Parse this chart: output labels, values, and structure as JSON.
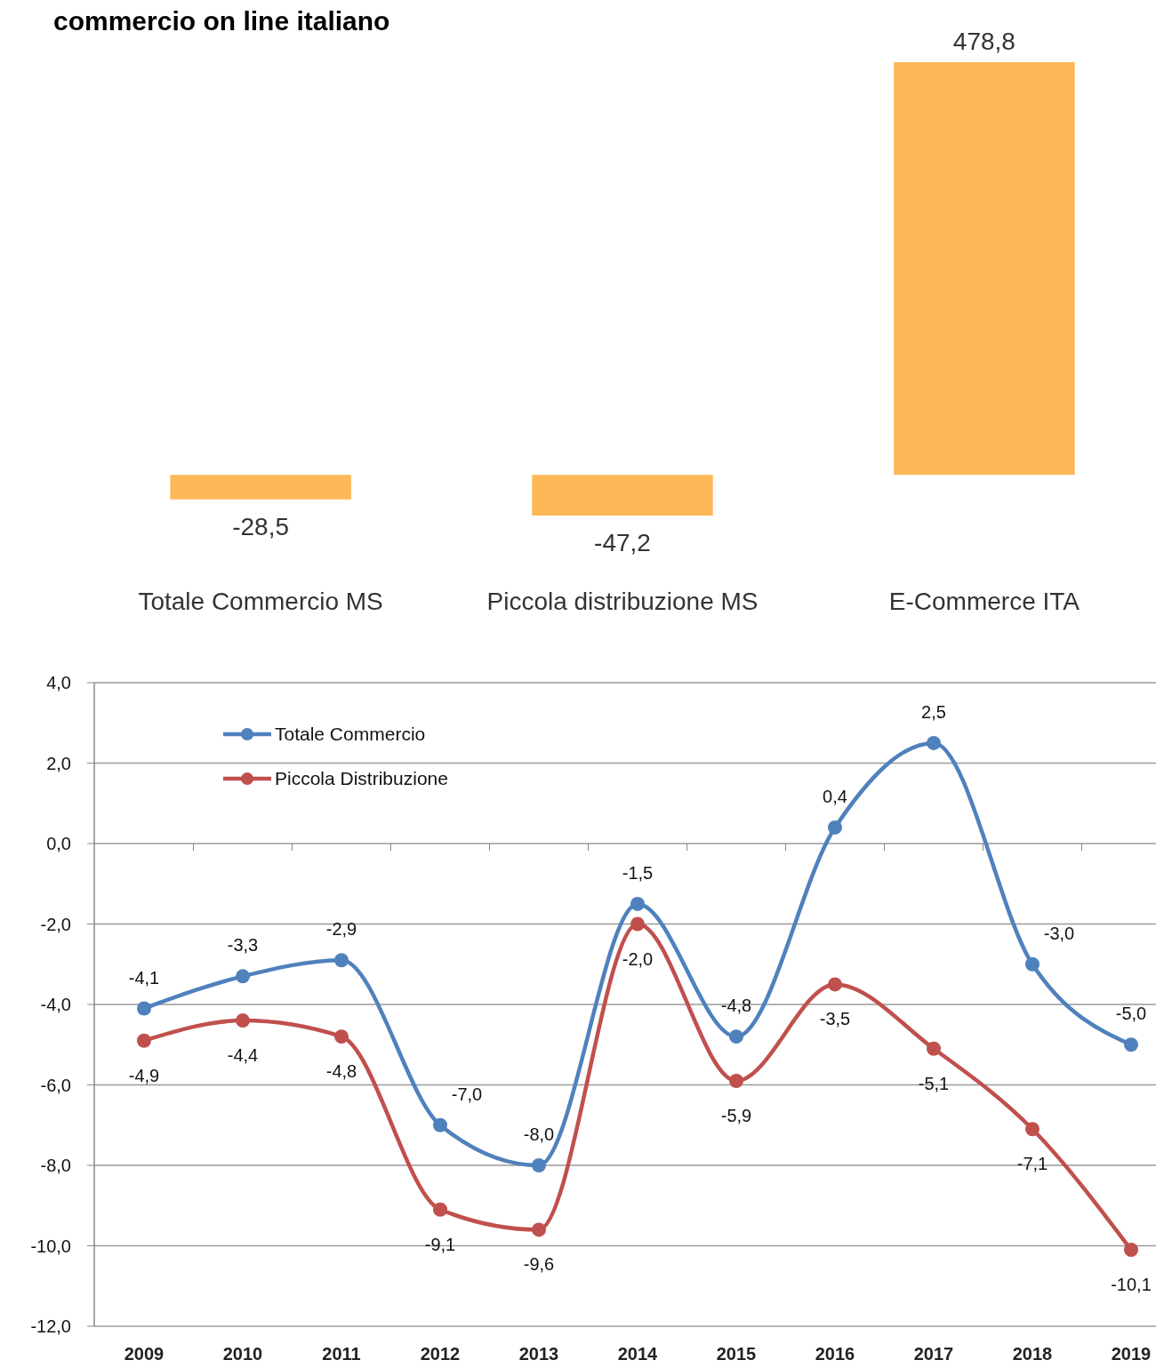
{
  "chart_data": [
    {
      "type": "bar",
      "title": "commercio on line italiano",
      "categories": [
        "Totale Commercio MS",
        "Piccola distribuzione MS",
        "E-Commerce ITA"
      ],
      "values": [
        -28.5,
        -47.2,
        478.8
      ],
      "value_labels": [
        "-28,5",
        "-47,2",
        "478,8"
      ],
      "color": "#fdb858"
    },
    {
      "type": "line",
      "categories": [
        "2009",
        "2010",
        "2011",
        "2012",
        "2013",
        "2014",
        "2015",
        "2016",
        "2017",
        "2018",
        "2019"
      ],
      "series": [
        {
          "name": "Totale Commercio",
          "color": "#4f81bd",
          "values": [
            -4.1,
            -3.3,
            -2.9,
            -7.0,
            -8.0,
            -1.5,
            -4.8,
            0.4,
            2.5,
            -3.0,
            -5.0
          ],
          "value_labels": [
            "-4,1",
            "-3,3",
            "-2,9",
            "-7,0",
            "-8,0",
            "-1,5",
            "-4,8",
            "0,4",
            "2,5",
            "-3,0",
            "-5,0"
          ]
        },
        {
          "name": "Piccola Distribuzione",
          "color": "#c0504d",
          "values": [
            -4.9,
            -4.4,
            -4.8,
            -9.1,
            -9.6,
            -2.0,
            -5.9,
            -3.5,
            -5.1,
            -7.1,
            -10.1
          ],
          "value_labels": [
            "-4,9",
            "-4,4",
            "-4,8",
            "-9,1",
            "-9,6",
            "-2,0",
            "-5,9",
            "-3,5",
            "-5,1",
            "-7,1",
            "-10,1"
          ]
        }
      ],
      "ylim": [
        -12,
        4
      ],
      "yticks": [
        {
          "value": -12,
          "label": "-12,0"
        },
        {
          "value": -10,
          "label": "-10,0"
        },
        {
          "value": -8,
          "label": "-8,0"
        },
        {
          "value": -6,
          "label": "-6,0"
        },
        {
          "value": -4,
          "label": "-4,0"
        },
        {
          "value": -2,
          "label": "-2,0"
        },
        {
          "value": 0,
          "label": "0,0"
        },
        {
          "value": 2,
          "label": "2,0"
        },
        {
          "value": 4,
          "label": "4,0"
        }
      ],
      "grid": "y",
      "legend": "top left",
      "marker": "circle"
    }
  ]
}
